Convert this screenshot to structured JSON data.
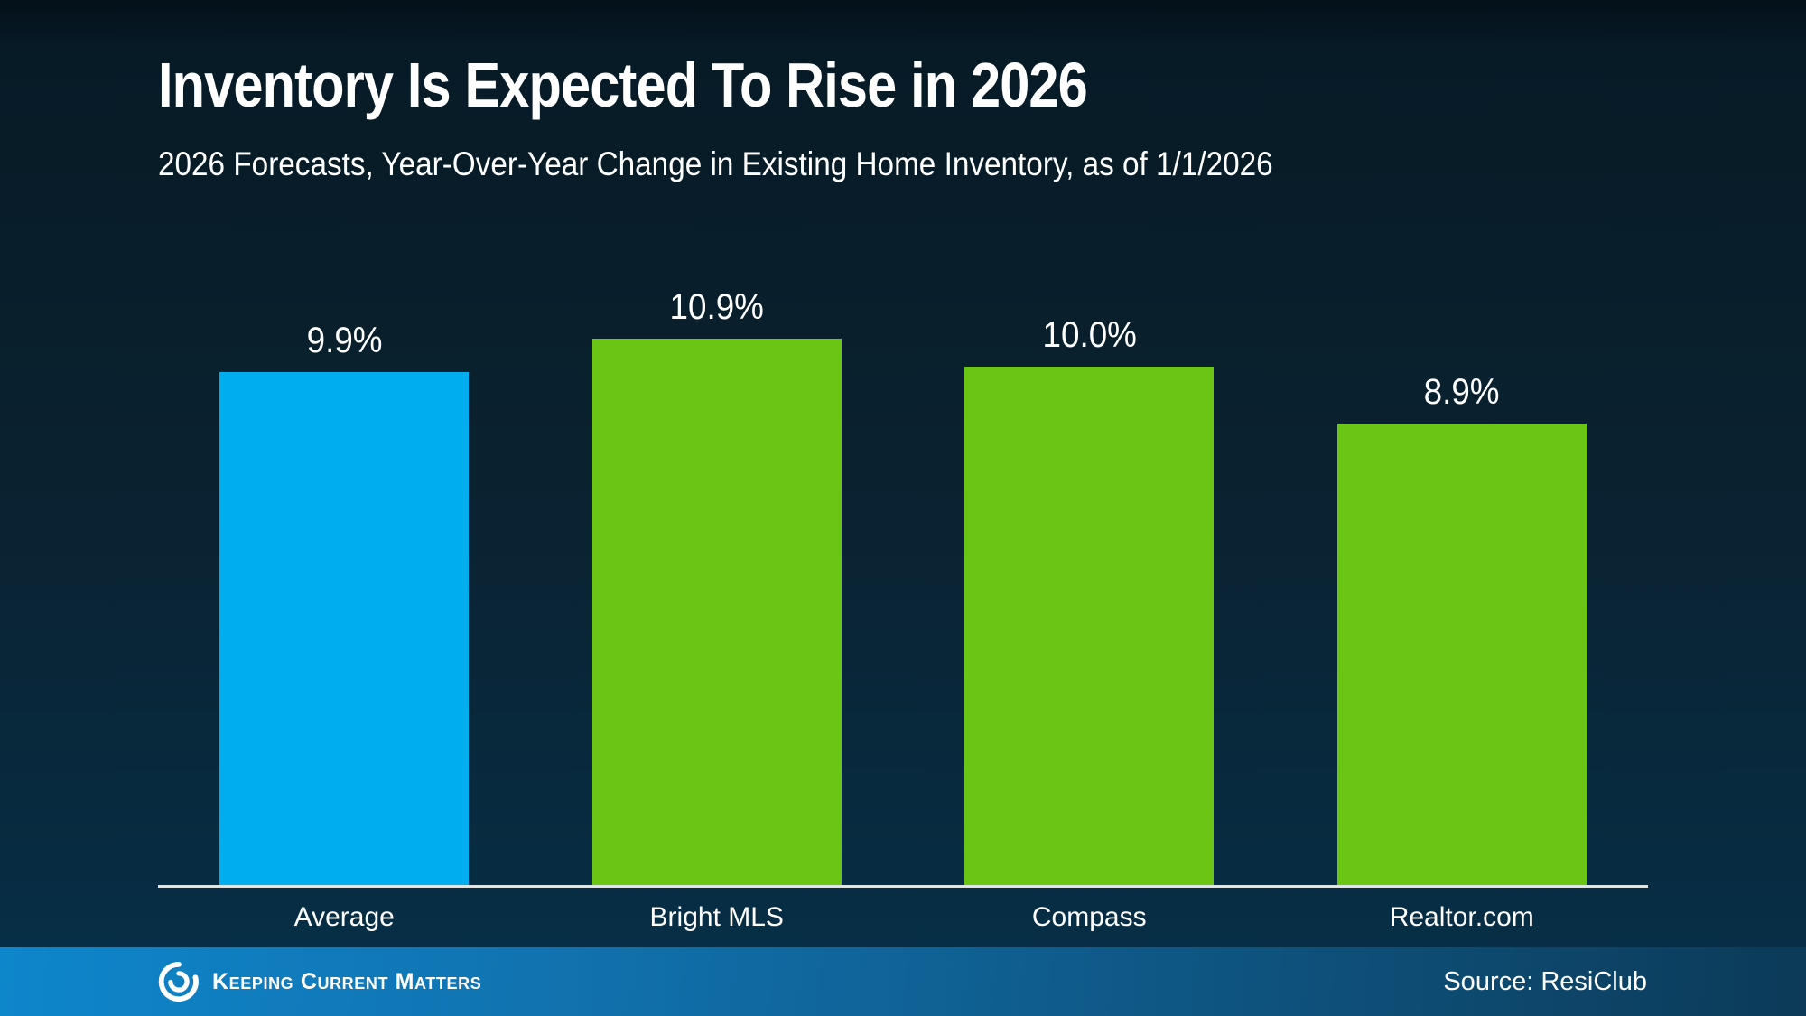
{
  "header": {
    "title": "Inventory Is Expected To Rise in 2026",
    "subtitle": "2026 Forecasts, Year-Over-Year Change in Existing Home Inventory, as of 1/1/2026"
  },
  "chart_data": {
    "type": "bar",
    "title": "Inventory Is Expected To Rise in 2026",
    "subtitle": "2026 Forecasts, Year-Over-Year Change in Existing Home Inventory, as of 1/1/2026",
    "categories": [
      "Average",
      "Bright MLS",
      "Compass",
      "Realtor.com"
    ],
    "values": [
      9.9,
      10.9,
      10.0,
      8.9
    ],
    "value_labels": [
      "9.9%",
      "10.9%",
      "10.0%",
      "8.9%"
    ],
    "bar_colors": [
      "#00ADEE",
      "#6BC514",
      "#6BC514",
      "#6BC514"
    ],
    "highlight_bar": "Average",
    "highlight_color": "#00ADEE",
    "default_bar_color": "#6BC514",
    "xlabel": "",
    "ylabel": "",
    "ylim": [
      0,
      11.5
    ],
    "grid": false,
    "legend": false,
    "value_suffix": "%"
  },
  "footer": {
    "brand": "Keeping Current Matters",
    "source": "Source: ResiClub"
  },
  "colors": {
    "background_top": "#04101A",
    "background_bottom": "#063049",
    "axis_line": "#DFE4E7",
    "text": "#FFFFFF",
    "footer_gradient_left": "#0E86CB",
    "footer_gradient_right": "#0C3A58"
  }
}
